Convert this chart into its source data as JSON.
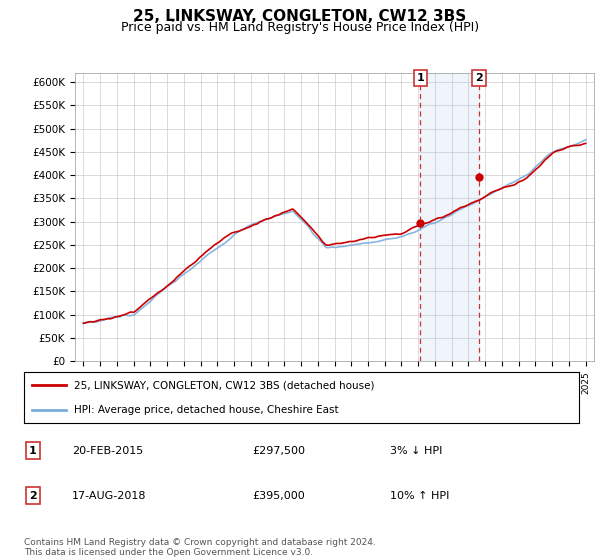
{
  "title": "25, LINKSWAY, CONGLETON, CW12 3BS",
  "subtitle": "Price paid vs. HM Land Registry's House Price Index (HPI)",
  "title_fontsize": 11,
  "subtitle_fontsize": 9,
  "ylim": [
    0,
    620000
  ],
  "yticks": [
    0,
    50000,
    100000,
    150000,
    200000,
    250000,
    300000,
    350000,
    400000,
    450000,
    500000,
    550000,
    600000
  ],
  "background_color": "#ffffff",
  "grid_color": "#cccccc",
  "hpi_color": "#7aaddd",
  "price_color": "#cc0000",
  "sale1_x": 2015.13,
  "sale1_y": 297500,
  "sale2_x": 2018.63,
  "sale2_y": 395000,
  "legend_entries": [
    "25, LINKSWAY, CONGLETON, CW12 3BS (detached house)",
    "HPI: Average price, detached house, Cheshire East"
  ],
  "table_rows": [
    {
      "num": "1",
      "date": "20-FEB-2015",
      "price": "£297,500",
      "pct": "3% ↓ HPI"
    },
    {
      "num": "2",
      "date": "17-AUG-2018",
      "price": "£395,000",
      "pct": "10% ↑ HPI"
    }
  ],
  "footer": "Contains HM Land Registry data © Crown copyright and database right 2024.\nThis data is licensed under the Open Government Licence v3.0.",
  "xmin": 1994.5,
  "xmax": 2025.5
}
